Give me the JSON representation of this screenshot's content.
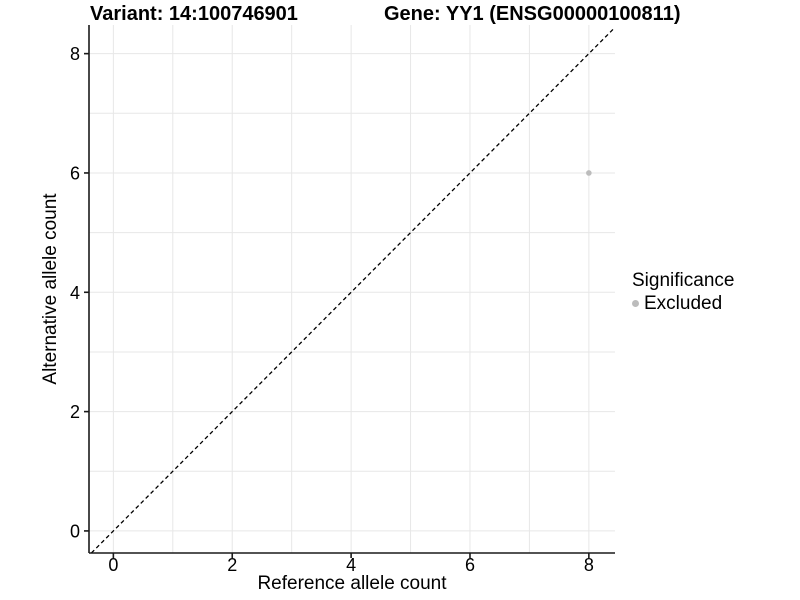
{
  "chart_data": {
    "type": "scatter",
    "titles": {
      "variant": "Variant: 14:100746901",
      "gene": "Gene: YY1 (ENSG00000100811)"
    },
    "xlabel": "Reference allele count",
    "ylabel": "Alternative allele count",
    "xlim": [
      -0.41,
      8.44
    ],
    "ylim": [
      -0.37,
      8.48
    ],
    "x_breaks": [
      0,
      2,
      4,
      6,
      8
    ],
    "y_breaks": [
      0,
      2,
      4,
      6,
      8
    ],
    "gridline_every": 1,
    "grid": true,
    "identity_line": {
      "show": true,
      "style": "dashed",
      "equation": "y = x",
      "color": "#000000"
    },
    "points": [
      {
        "x": 8,
        "y": 6,
        "significance": "Excluded",
        "color": "#bcbcbc"
      }
    ],
    "legend": {
      "title": "Significance",
      "position": "right",
      "items": [
        {
          "label": "Excluded",
          "color": "#bcbcbc",
          "marker": "circle-icon"
        }
      ]
    },
    "colors": {
      "gridline": "#e7e7e7",
      "axis": "#1a1a1a",
      "text": "#000000",
      "point": "#bcbcbc"
    }
  }
}
